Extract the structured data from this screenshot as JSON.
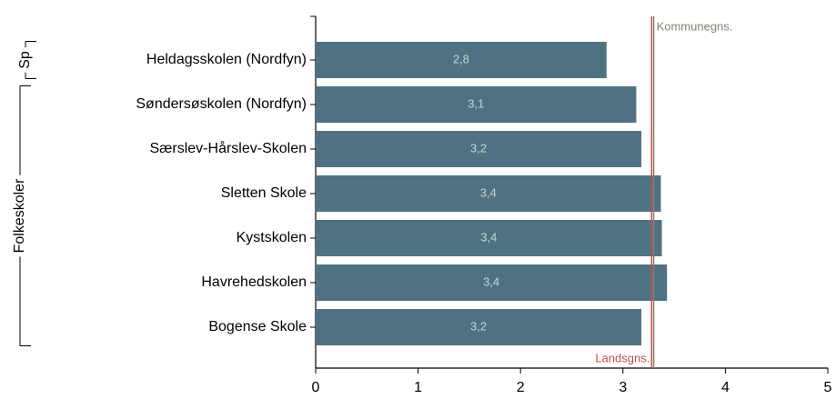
{
  "chart_data": {
    "type": "hbar",
    "categories": [
      "Heldagsskolen (Nordfyn)",
      "Søndersøskolen (Nordfyn)",
      "Særslev-Hårslev-Skolen",
      "Sletten Skole",
      "Kystskolen",
      "Havrehedskolen",
      "Bogense Skole"
    ],
    "values": [
      2.84,
      3.13,
      3.18,
      3.37,
      3.38,
      3.43,
      3.18
    ],
    "value_labels": [
      "2,8",
      "3,1",
      "3,2",
      "3,4",
      "3,4",
      "3,4",
      "3,2"
    ],
    "color": "#4f7282",
    "xlim": [
      0,
      5
    ],
    "xticks": [
      0,
      1,
      2,
      3,
      4,
      5
    ],
    "reference_lines": [
      {
        "name": "Landsgns.",
        "value": 3.28,
        "color": "#c0504d"
      },
      {
        "name": "Kommunegns.",
        "value": 3.3,
        "color": "#8c7c74"
      }
    ],
    "groups": [
      {
        "label": "Sp",
        "count": 1
      },
      {
        "label": "Folkeskoler",
        "count": 6
      }
    ]
  }
}
